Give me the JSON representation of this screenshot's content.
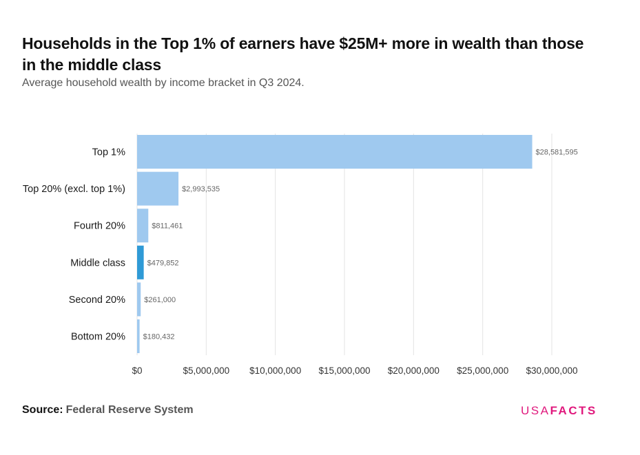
{
  "header": {
    "title": "Households in the Top 1% of earners have $25M+ more in wealth than those in the middle class",
    "subtitle": "Average household wealth by income bracket in Q3 2024."
  },
  "footer": {
    "source_label": "Source:",
    "source_value": "Federal Reserve System",
    "logo_usa": "USA",
    "logo_facts": "FACTS"
  },
  "colors": {
    "bar_default": "#9fc9ef",
    "bar_highlight": "#2f9ad6",
    "grid": "#e3e3e3",
    "logo": "#e0197d"
  },
  "chart_data": {
    "type": "bar",
    "orientation": "horizontal",
    "categories": [
      "Top 1%",
      "Top 20% (excl. top 1%)",
      "Fourth 20%",
      "Middle class",
      "Second 20%",
      "Bottom 20%"
    ],
    "values": [
      28581595,
      2993535,
      811461,
      479852,
      261000,
      180432
    ],
    "value_labels": [
      "$28,581,595",
      "$2,993,535",
      "$811,461",
      "$479,852",
      "$261,000",
      "$180,432"
    ],
    "highlight": "Middle class",
    "xlim": [
      0,
      30000000
    ],
    "xticks": [
      0,
      5000000,
      10000000,
      15000000,
      20000000,
      25000000,
      30000000
    ],
    "xtick_labels": [
      "$0",
      "$5,000,000",
      "$10,000,000",
      "$15,000,000",
      "$20,000,000",
      "$25,000,000",
      "$30,000,000"
    ],
    "grid": true
  }
}
